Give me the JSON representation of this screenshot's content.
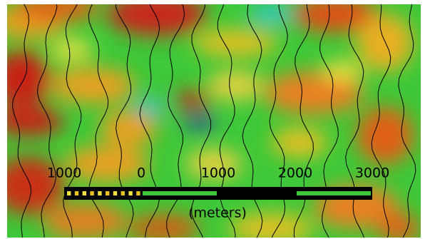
{
  "scale_bar": {
    "labels": [
      "1000",
      "0",
      "1000",
      "2000",
      "3000"
    ],
    "unit": "(meters)"
  }
}
